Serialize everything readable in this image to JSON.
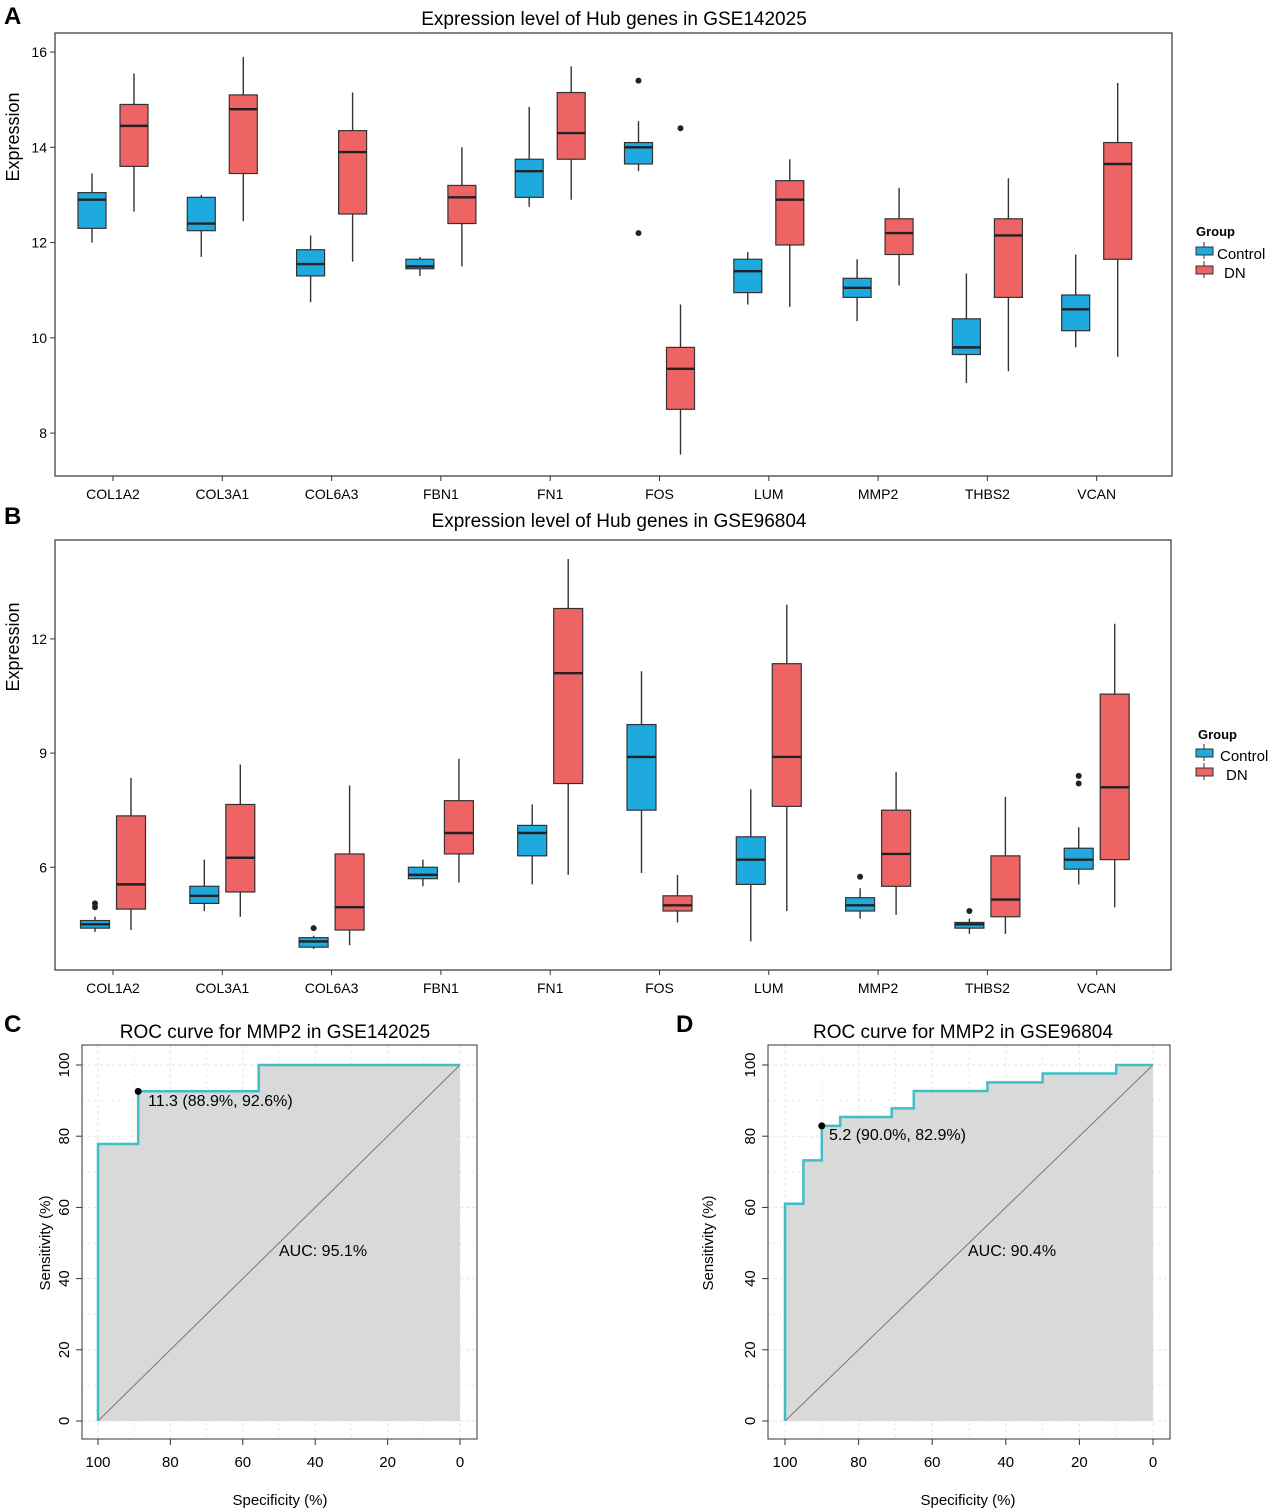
{
  "colors": {
    "control": "#1eaadf",
    "dn": "#ee6464",
    "roc_line": "#3fbfc4",
    "roc_fill": "#d9d9d9",
    "grid": "#e6e6e6"
  },
  "chart_data": [
    {
      "panel": "A",
      "type": "box",
      "title": "Expression level of Hub genes in GSE142025",
      "xlabel": "",
      "ylabel": "Expression",
      "ylim": [
        7.1,
        16.4
      ],
      "yticks": [
        8,
        10,
        12,
        14,
        16
      ],
      "grid": false,
      "legend": {
        "title": "Group",
        "position": "right",
        "entries": [
          "Control",
          "DN"
        ]
      },
      "categories": [
        "COL1A2",
        "COL3A1",
        "COL6A3",
        "FBN1",
        "FN1",
        "FOS",
        "LUM",
        "MMP2",
        "THBS2",
        "VCAN"
      ],
      "series": [
        {
          "name": "Control",
          "boxes": [
            {
              "min": 12.0,
              "q1": 12.3,
              "median": 12.9,
              "q3": 13.05,
              "max": 13.45,
              "outliers": []
            },
            {
              "min": 11.7,
              "q1": 12.25,
              "median": 12.4,
              "q3": 12.95,
              "max": 13.0,
              "outliers": []
            },
            {
              "min": 10.75,
              "q1": 11.3,
              "median": 11.55,
              "q3": 11.85,
              "max": 12.15,
              "outliers": []
            },
            {
              "min": 11.3,
              "q1": 11.45,
              "median": 11.5,
              "q3": 11.65,
              "max": 11.7,
              "outliers": []
            },
            {
              "min": 12.75,
              "q1": 12.95,
              "median": 13.5,
              "q3": 13.75,
              "max": 14.85,
              "outliers": []
            },
            {
              "min": 13.5,
              "q1": 13.65,
              "median": 14.0,
              "q3": 14.1,
              "max": 14.55,
              "outliers": [
                15.4,
                12.2
              ]
            },
            {
              "min": 10.7,
              "q1": 10.95,
              "median": 11.4,
              "q3": 11.65,
              "max": 11.8,
              "outliers": []
            },
            {
              "min": 10.35,
              "q1": 10.85,
              "median": 11.05,
              "q3": 11.25,
              "max": 11.65,
              "outliers": []
            },
            {
              "min": 9.05,
              "q1": 9.65,
              "median": 9.8,
              "q3": 10.4,
              "max": 11.35,
              "outliers": []
            },
            {
              "min": 9.8,
              "q1": 10.15,
              "median": 10.6,
              "q3": 10.9,
              "max": 11.75,
              "outliers": []
            }
          ]
        },
        {
          "name": "DN",
          "boxes": [
            {
              "min": 12.65,
              "q1": 13.6,
              "median": 14.45,
              "q3": 14.9,
              "max": 15.55,
              "outliers": []
            },
            {
              "min": 12.45,
              "q1": 13.45,
              "median": 14.8,
              "q3": 15.1,
              "max": 15.9,
              "outliers": []
            },
            {
              "min": 11.6,
              "q1": 12.6,
              "median": 13.9,
              "q3": 14.35,
              "max": 15.15,
              "outliers": []
            },
            {
              "min": 11.5,
              "q1": 12.4,
              "median": 12.95,
              "q3": 13.2,
              "max": 14.0,
              "outliers": []
            },
            {
              "min": 12.9,
              "q1": 13.75,
              "median": 14.3,
              "q3": 15.15,
              "max": 15.7,
              "outliers": []
            },
            {
              "min": 7.55,
              "q1": 8.5,
              "median": 9.35,
              "q3": 9.8,
              "max": 10.7,
              "outliers": [
                14.4
              ]
            },
            {
              "min": 10.65,
              "q1": 11.95,
              "median": 12.9,
              "q3": 13.3,
              "max": 13.75,
              "outliers": []
            },
            {
              "min": 11.1,
              "q1": 11.75,
              "median": 12.2,
              "q3": 12.5,
              "max": 13.15,
              "outliers": []
            },
            {
              "min": 9.3,
              "q1": 10.85,
              "median": 12.15,
              "q3": 12.5,
              "max": 13.35,
              "outliers": []
            },
            {
              "min": 9.6,
              "q1": 11.65,
              "median": 13.65,
              "q3": 14.1,
              "max": 15.35,
              "outliers": []
            }
          ]
        }
      ]
    },
    {
      "panel": "B",
      "type": "box",
      "title": "Expression level of Hub genes in GSE96804",
      "xlabel": "",
      "ylabel": "Expression",
      "ylim": [
        3.3,
        14.6
      ],
      "yticks": [
        6,
        9,
        12
      ],
      "grid": false,
      "legend": {
        "title": "Group",
        "position": "right",
        "entries": [
          "Control",
          "DN"
        ]
      },
      "categories": [
        "COL1A2",
        "COL3A1",
        "COL6A3",
        "FBN1",
        "FN1",
        "FOS",
        "LUM",
        "MMP2",
        "THBS2",
        "VCAN"
      ],
      "series": [
        {
          "name": "Control",
          "boxes": [
            {
              "min": 4.3,
              "q1": 4.4,
              "median": 4.5,
              "q3": 4.6,
              "max": 4.7,
              "outliers": [
                4.95,
                5.05
              ]
            },
            {
              "min": 4.85,
              "q1": 5.05,
              "median": 5.25,
              "q3": 5.5,
              "max": 6.2,
              "outliers": []
            },
            {
              "min": 3.85,
              "q1": 3.9,
              "median": 4.05,
              "q3": 4.15,
              "max": 4.2,
              "outliers": [
                4.4
              ]
            },
            {
              "min": 5.5,
              "q1": 5.7,
              "median": 5.8,
              "q3": 6.0,
              "max": 6.2,
              "outliers": []
            },
            {
              "min": 5.55,
              "q1": 6.3,
              "median": 6.9,
              "q3": 7.1,
              "max": 7.65,
              "outliers": []
            },
            {
              "min": 5.85,
              "q1": 7.5,
              "median": 8.9,
              "q3": 9.75,
              "max": 11.15,
              "outliers": []
            },
            {
              "min": 4.05,
              "q1": 5.55,
              "median": 6.2,
              "q3": 6.8,
              "max": 8.05,
              "outliers": []
            },
            {
              "min": 4.65,
              "q1": 4.85,
              "median": 5.0,
              "q3": 5.2,
              "max": 5.45,
              "outliers": [
                5.75
              ]
            },
            {
              "min": 4.25,
              "q1": 4.4,
              "median": 4.5,
              "q3": 4.55,
              "max": 4.65,
              "outliers": [
                4.85
              ]
            },
            {
              "min": 5.55,
              "q1": 5.95,
              "median": 6.2,
              "q3": 6.5,
              "max": 7.05,
              "outliers": [
                8.2,
                8.4
              ]
            }
          ]
        },
        {
          "name": "DN",
          "boxes": [
            {
              "min": 4.35,
              "q1": 4.9,
              "median": 5.55,
              "q3": 7.35,
              "max": 8.35,
              "outliers": []
            },
            {
              "min": 4.7,
              "q1": 5.35,
              "median": 6.25,
              "q3": 7.65,
              "max": 8.7,
              "outliers": []
            },
            {
              "min": 3.95,
              "q1": 4.35,
              "median": 4.95,
              "q3": 6.35,
              "max": 8.15,
              "outliers": []
            },
            {
              "min": 5.6,
              "q1": 6.35,
              "median": 6.9,
              "q3": 7.75,
              "max": 8.85,
              "outliers": []
            },
            {
              "min": 5.8,
              "q1": 8.2,
              "median": 11.1,
              "q3": 12.8,
              "max": 14.1,
              "outliers": []
            },
            {
              "min": 4.55,
              "q1": 4.85,
              "median": 5.0,
              "q3": 5.25,
              "max": 5.8,
              "outliers": []
            },
            {
              "min": 4.85,
              "q1": 7.6,
              "median": 8.9,
              "q3": 11.35,
              "max": 12.9,
              "outliers": []
            },
            {
              "min": 4.75,
              "q1": 5.5,
              "median": 6.35,
              "q3": 7.5,
              "max": 8.5,
              "outliers": []
            },
            {
              "min": 4.25,
              "q1": 4.7,
              "median": 5.15,
              "q3": 6.3,
              "max": 7.85,
              "outliers": []
            },
            {
              "min": 4.95,
              "q1": 6.2,
              "median": 8.1,
              "q3": 10.55,
              "max": 12.4,
              "outliers": []
            }
          ]
        }
      ]
    },
    {
      "panel": "C",
      "type": "line",
      "title": "ROC curve for MMP2  in GSE142025",
      "xlabel": "Specificity (%)",
      "ylabel": "Sensitivity (%)",
      "xlim": [
        100,
        0
      ],
      "ylim": [
        0,
        100
      ],
      "ticks": [
        100,
        80,
        60,
        40,
        20,
        0
      ],
      "grid": true,
      "auc_label": "AUC: 95.1%",
      "threshold_label": "11.3 (88.9%, 92.6%)",
      "threshold_point": {
        "specificity": 88.9,
        "sensitivity": 92.6
      },
      "points": [
        [
          100,
          0
        ],
        [
          100,
          77.8
        ],
        [
          88.9,
          77.8
        ],
        [
          88.9,
          92.6
        ],
        [
          55.6,
          92.6
        ],
        [
          55.6,
          100
        ],
        [
          0,
          100
        ]
      ]
    },
    {
      "panel": "D",
      "type": "line",
      "title": "ROC curve for MMP2  in GSE96804",
      "xlabel": "Specificity (%)",
      "ylabel": "Sensitivity (%)",
      "xlim": [
        100,
        0
      ],
      "ylim": [
        0,
        100
      ],
      "ticks": [
        100,
        80,
        60,
        40,
        20,
        0
      ],
      "grid": true,
      "auc_label": "AUC: 90.4%",
      "threshold_label": "5.2 (90.0%, 82.9%)",
      "threshold_point": {
        "specificity": 90.0,
        "sensitivity": 82.9
      },
      "points": [
        [
          100,
          0
        ],
        [
          100,
          61
        ],
        [
          95,
          61
        ],
        [
          95,
          73.2
        ],
        [
          90,
          73.2
        ],
        [
          90,
          82.9
        ],
        [
          85,
          82.9
        ],
        [
          85,
          85.4
        ],
        [
          71,
          85.4
        ],
        [
          71,
          87.8
        ],
        [
          65,
          87.8
        ],
        [
          65,
          92.7
        ],
        [
          45,
          92.7
        ],
        [
          45,
          95.1
        ],
        [
          30,
          95.1
        ],
        [
          30,
          97.6
        ],
        [
          10,
          97.6
        ],
        [
          10,
          100
        ],
        [
          0,
          100
        ]
      ]
    }
  ]
}
